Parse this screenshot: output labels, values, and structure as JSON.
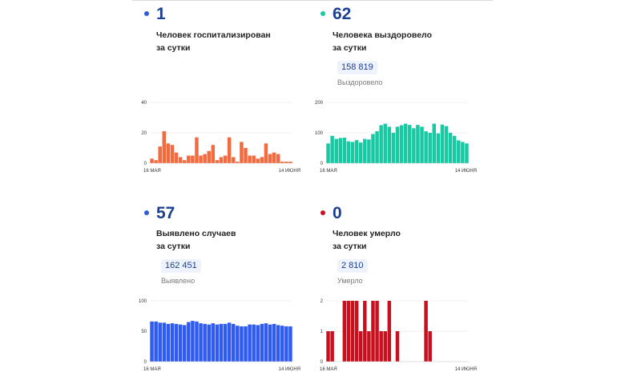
{
  "cards": [
    {
      "id": "hospitalized",
      "value": "1",
      "caption_line1": "Человек госпитализирован",
      "caption_line2": "за сутки",
      "total": "",
      "total_label": "",
      "color": "#f26a3d",
      "bullet_color": "#2f5bd7"
    },
    {
      "id": "recovered",
      "value": "62",
      "caption_line1": "Человека выздоровело",
      "caption_line2": "за сутки",
      "total": "158 819",
      "total_label": "Выздоровело",
      "color": "#19c9a4",
      "bullet_color": "#19c9a4"
    },
    {
      "id": "cases",
      "value": "57",
      "caption_line1": "Выявлено случаев",
      "caption_line2": "за сутки",
      "total": "162 451",
      "total_label": "Выявлено",
      "color": "#2f5bf0",
      "bullet_color": "#2f5bd7"
    },
    {
      "id": "deaths",
      "value": "0",
      "caption_line1": "Человек умерло",
      "caption_line2": "за сутки",
      "total": "2 810",
      "total_label": "Умерло",
      "color": "#c8101e",
      "bullet_color": "#c8101e"
    }
  ],
  "chart_data": [
    {
      "type": "bar",
      "card": "hospitalized",
      "x_start_label": "16 МАЯ",
      "x_end_label": "14 ИЮНЯ",
      "ylim": [
        0,
        40
      ],
      "yticks": [
        0,
        20,
        40
      ],
      "values": [
        3,
        2,
        11,
        21,
        13,
        12,
        7,
        4,
        2,
        5,
        5,
        17,
        5,
        6,
        8,
        12,
        2,
        4,
        5,
        17,
        4,
        1,
        14,
        10,
        5,
        5,
        3,
        4,
        13,
        6,
        7,
        6,
        1,
        1,
        1
      ]
    },
    {
      "type": "bar",
      "card": "recovered",
      "x_start_label": "16 МАЯ",
      "x_end_label": "14 ИЮНЯ",
      "ylim": [
        0,
        200
      ],
      "yticks": [
        0,
        100,
        200
      ],
      "values": [
        65,
        90,
        80,
        83,
        84,
        72,
        70,
        76,
        68,
        80,
        78,
        96,
        105,
        125,
        130,
        120,
        100,
        120,
        125,
        130,
        126,
        115,
        126,
        120,
        105,
        100,
        130,
        98,
        127,
        122,
        100,
        90,
        75,
        70,
        65
      ]
    },
    {
      "type": "bar",
      "card": "cases",
      "x_start_label": "16 МАЯ",
      "x_end_label": "14 ИЮНЯ",
      "ylim": [
        0,
        100
      ],
      "yticks": [
        0,
        50,
        100
      ],
      "values": [
        66,
        66,
        64,
        64,
        62,
        63,
        62,
        61,
        60,
        65,
        67,
        66,
        63,
        62,
        61,
        63,
        61,
        62,
        62,
        64,
        62,
        59,
        58,
        58,
        61,
        61,
        60,
        62,
        63,
        61,
        62,
        60,
        59,
        58,
        58
      ]
    },
    {
      "type": "bar",
      "card": "deaths",
      "x_start_label": "16 МАЯ",
      "x_end_label": "14 ИЮНЯ",
      "ylim": [
        0,
        2
      ],
      "yticks": [
        0,
        1,
        2
      ],
      "values": [
        1,
        1,
        0,
        0,
        2,
        2,
        2,
        2,
        1,
        2,
        1,
        2,
        2,
        1,
        1,
        2,
        0,
        1,
        0,
        0,
        0,
        0,
        0,
        0,
        2,
        1,
        0,
        0,
        0,
        0,
        0,
        0,
        0,
        0,
        0
      ]
    }
  ]
}
